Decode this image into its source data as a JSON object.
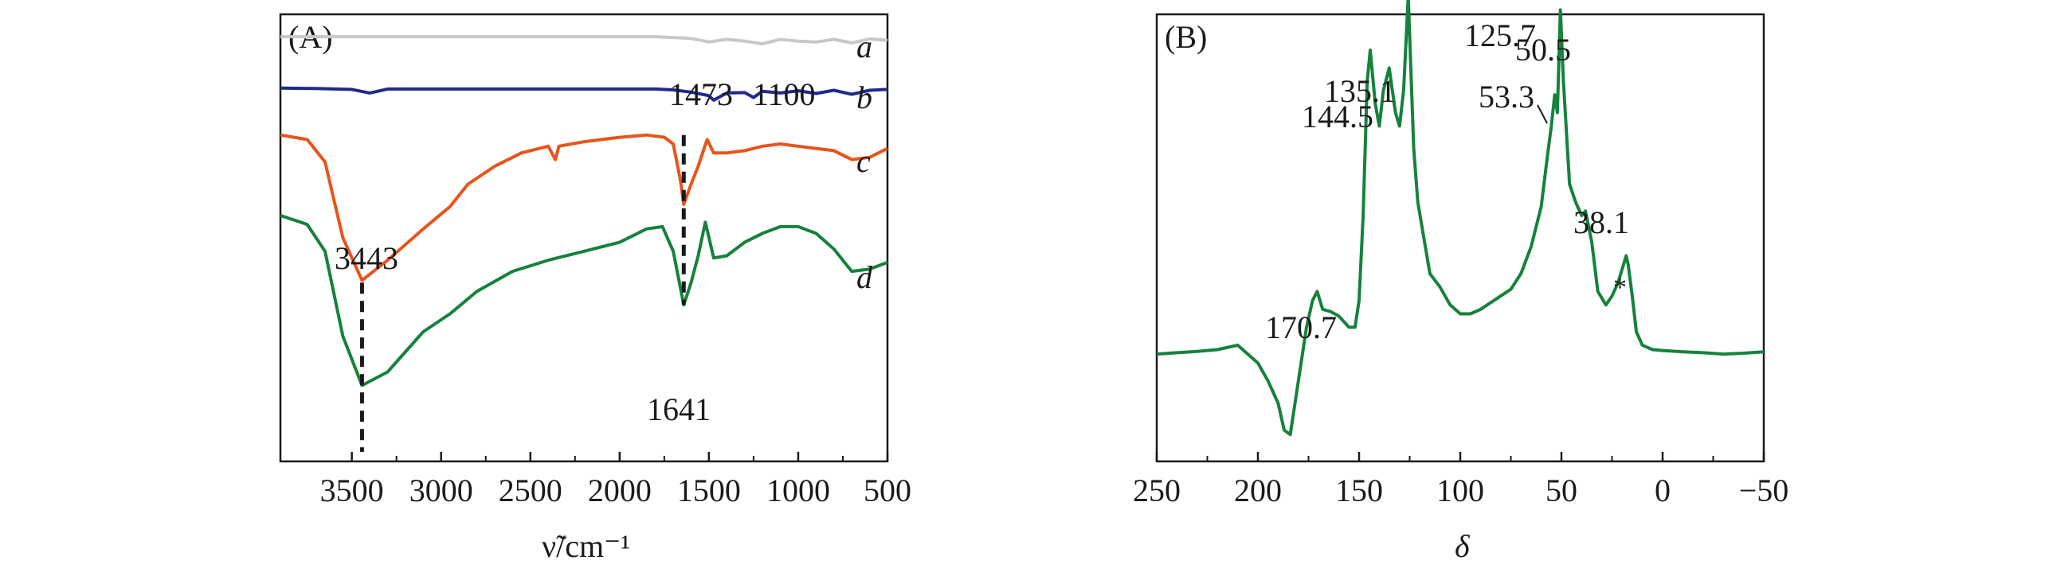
{
  "chart_data": [
    {
      "type": "line",
      "panel_label": "(A)",
      "xlabel": "ν̃/cm⁻¹",
      "x_reversed": true,
      "xlim": [
        3900,
        500
      ],
      "xticks": [
        3500,
        3000,
        2500,
        2000,
        1500,
        1000,
        500
      ],
      "xtick_labels": [
        "3500",
        "3000",
        "2500",
        "2000",
        "1500",
        "1000",
        "500"
      ],
      "y_axis_ticks": false,
      "ylim": [
        0,
        100
      ],
      "series": [
        {
          "name": "a",
          "color": "#c8c8c8",
          "x": [
            3900,
            3500,
            3000,
            2500,
            2000,
            1800,
            1600,
            1500,
            1400,
            1300,
            1200,
            1100,
            1000,
            900,
            800,
            700,
            600,
            500
          ],
          "y": [
            95,
            95,
            95,
            95,
            95,
            95,
            94.6,
            93.8,
            94.4,
            94,
            93.4,
            94.4,
            94,
            93.8,
            94.4,
            93.6,
            94.5,
            94.2
          ]
        },
        {
          "name": "b",
          "color": "#1f2a8a",
          "x": [
            3900,
            3700,
            3500,
            3400,
            3300,
            3000,
            2500,
            2000,
            1800,
            1700,
            1600,
            1500,
            1473,
            1400,
            1300,
            1250,
            1200,
            1100,
            1000,
            900,
            800,
            700,
            600,
            500
          ],
          "y": [
            83.5,
            83.4,
            83.2,
            82.4,
            83.3,
            83.3,
            83.3,
            83.3,
            83.3,
            83.1,
            82.6,
            81.8,
            80.8,
            82.4,
            82.5,
            81.4,
            82.8,
            82.4,
            82.9,
            82.3,
            83.0,
            82.1,
            83.0,
            83.2
          ]
        },
        {
          "name": "c",
          "color": "#e8541b",
          "x": [
            3900,
            3750,
            3650,
            3550,
            3443,
            3300,
            3100,
            2950,
            2850,
            2700,
            2550,
            2400,
            2360,
            2340,
            2200,
            2000,
            1850,
            1750,
            1700,
            1660,
            1641,
            1600,
            1560,
            1510,
            1473,
            1400,
            1300,
            1200,
            1100,
            1000,
            900,
            800,
            700,
            600,
            500
          ],
          "y": [
            73,
            72,
            67,
            50,
            40.5,
            45,
            52,
            57,
            62,
            66,
            69,
            70.5,
            67.5,
            70.5,
            71.5,
            72.5,
            73,
            72.5,
            71,
            63,
            57.5,
            62,
            66,
            72,
            69,
            69,
            69.5,
            70.5,
            71,
            70.5,
            70,
            69.5,
            67.5,
            68,
            70
          ]
        },
        {
          "name": "d",
          "color": "#15823c",
          "x": [
            3900,
            3750,
            3650,
            3550,
            3443,
            3300,
            3100,
            2950,
            2800,
            2600,
            2400,
            2200,
            2000,
            1850,
            1760,
            1700,
            1641,
            1600,
            1560,
            1520,
            1473,
            1400,
            1300,
            1200,
            1100,
            1000,
            900,
            800,
            700,
            600,
            500
          ],
          "y": [
            55,
            53,
            47,
            28,
            17,
            20,
            29,
            33,
            38,
            42.5,
            45,
            47,
            49,
            52,
            52.5,
            47,
            35,
            40,
            46,
            53.5,
            45.5,
            46,
            49,
            51,
            52.5,
            52.5,
            51,
            47.5,
            42.5,
            43,
            44.5
          ]
        }
      ],
      "annotations": [
        {
          "text": "3443",
          "x": 3443
        },
        {
          "text": "1641",
          "x": 1641
        },
        {
          "text": "1473",
          "x": 1473
        },
        {
          "text": "1100",
          "x": 1100
        }
      ],
      "dashed_markers": [
        3443,
        1641
      ]
    },
    {
      "type": "line",
      "panel_label": "(B)",
      "xlabel": "δ",
      "x_reversed": true,
      "xlim": [
        250,
        -50
      ],
      "xticks": [
        250,
        200,
        150,
        100,
        50,
        0,
        -50
      ],
      "xtick_labels": [
        "250",
        "200",
        "150",
        "100",
        "50",
        "0",
        "−50"
      ],
      "y_axis_ticks": false,
      "ylim": [
        0,
        100
      ],
      "series": [
        {
          "name": "",
          "color": "#15823c",
          "x": [
            250,
            240,
            230,
            220,
            210,
            200,
            195,
            190,
            187,
            184,
            180,
            176,
            173,
            170.7,
            168,
            164,
            160,
            155,
            152,
            150,
            148,
            146,
            144.5,
            142,
            140,
            138,
            135.1,
            132,
            130,
            128,
            125.7,
            123,
            121,
            118,
            115,
            110,
            105,
            100,
            95,
            90,
            85,
            80,
            75,
            70,
            65,
            60,
            57,
            55,
            53.3,
            52,
            50.5,
            49,
            46,
            43,
            40,
            38.1,
            35,
            32,
            28,
            25,
            22,
            20,
            18,
            17,
            15,
            13,
            10,
            5,
            0,
            -10,
            -20,
            -30,
            -40,
            -50
          ],
          "y": [
            24,
            24.3,
            24.6,
            25,
            26,
            22,
            18,
            13,
            7,
            6,
            18,
            30,
            36,
            38,
            34,
            33.5,
            32.5,
            30,
            30,
            36,
            55,
            85,
            92,
            80,
            75,
            83,
            88,
            78,
            75,
            83,
            104,
            70,
            58,
            50,
            42,
            39,
            35,
            33,
            33,
            34,
            35.5,
            37,
            38.5,
            42,
            48,
            57,
            68,
            75,
            82,
            78,
            101,
            85,
            62,
            58,
            55,
            56,
            49,
            38,
            35,
            37,
            40,
            43,
            46,
            44,
            37,
            29,
            26,
            25,
            24.8,
            24.5,
            24.3,
            24,
            24.2,
            24.5
          ]
        }
      ],
      "annotations": [
        {
          "text": "125.7",
          "x": 125.7
        },
        {
          "text": "135.1",
          "x": 135.1
        },
        {
          "text": "144.5",
          "x": 144.5
        },
        {
          "text": "50.5",
          "x": 50.5
        },
        {
          "text": "53.3",
          "x": 53.3
        },
        {
          "text": "38.1",
          "x": 38.1
        },
        {
          "text": "170.7",
          "x": 170.7
        },
        {
          "text": "*",
          "x": 17
        }
      ]
    }
  ]
}
